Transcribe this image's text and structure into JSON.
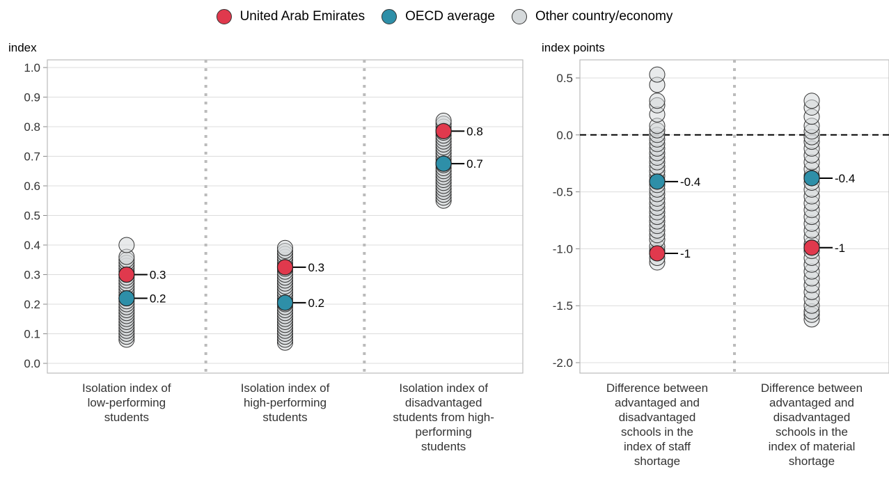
{
  "legend": [
    {
      "label": "United Arab Emirates",
      "color": "#e0394d"
    },
    {
      "label": "OECD average",
      "color": "#2e8fa8"
    },
    {
      "label": "Other country/economy",
      "color": "#d5d9db"
    }
  ],
  "colors": {
    "highlight": "#e0394d",
    "oecd": "#2e8fa8",
    "other": "#d5d9db",
    "other_edge": "#333333"
  },
  "chart_data": [
    {
      "type": "scatter",
      "unit_label": "index",
      "ylim": [
        0,
        1.0
      ],
      "yticks": [
        "0.0",
        "0.1",
        "0.2",
        "0.3",
        "0.4",
        "0.5",
        "0.6",
        "0.7",
        "0.8",
        "0.9",
        "1.0"
      ],
      "grid": true,
      "categories": [
        {
          "label": [
            "Isolation index of",
            "low-performing",
            "students"
          ],
          "others": [
            0.08,
            0.09,
            0.1,
            0.11,
            0.12,
            0.13,
            0.14,
            0.15,
            0.16,
            0.17,
            0.18,
            0.19,
            0.2,
            0.21,
            0.22,
            0.23,
            0.24,
            0.25,
            0.26,
            0.27,
            0.28,
            0.29,
            0.3,
            0.31,
            0.32,
            0.33,
            0.34,
            0.35,
            0.36,
            0.4
          ],
          "uae": {
            "value": 0.3,
            "label": "0.3"
          },
          "oecd": {
            "value": 0.22,
            "label": "0.2"
          }
        },
        {
          "label": [
            "Isolation index of",
            "high-performing",
            "students"
          ],
          "others": [
            0.07,
            0.08,
            0.09,
            0.1,
            0.11,
            0.12,
            0.13,
            0.14,
            0.15,
            0.16,
            0.17,
            0.18,
            0.19,
            0.2,
            0.21,
            0.22,
            0.23,
            0.24,
            0.25,
            0.26,
            0.27,
            0.28,
            0.29,
            0.3,
            0.31,
            0.32,
            0.33,
            0.34,
            0.35,
            0.36,
            0.37,
            0.38,
            0.39
          ],
          "uae": {
            "value": 0.325,
            "label": "0.3"
          },
          "oecd": {
            "value": 0.205,
            "label": "0.2"
          }
        },
        {
          "label": [
            "Isolation index of",
            "disadvantaged",
            "students from high-",
            "performing",
            "students"
          ],
          "others": [
            0.55,
            0.56,
            0.57,
            0.58,
            0.59,
            0.6,
            0.61,
            0.62,
            0.63,
            0.64,
            0.65,
            0.66,
            0.67,
            0.68,
            0.69,
            0.7,
            0.71,
            0.72,
            0.73,
            0.74,
            0.75,
            0.76,
            0.77,
            0.78,
            0.79,
            0.8,
            0.81,
            0.82
          ],
          "uae": {
            "value": 0.785,
            "label": "0.8"
          },
          "oecd": {
            "value": 0.675,
            "label": "0.7"
          }
        }
      ]
    },
    {
      "type": "scatter",
      "unit_label": "index points",
      "ylim": [
        -2.0,
        0.6
      ],
      "yticks": [
        "-2.0",
        "-1.5",
        "-1.0",
        "-0.5",
        "0.0",
        "0.5"
      ],
      "grid": true,
      "reference_line": 0.0,
      "categories": [
        {
          "label": [
            "Difference between",
            "advantaged and",
            "disadvantaged",
            "schools in the",
            "index of staff",
            "shortage"
          ],
          "others": [
            -1.12,
            -1.08,
            -1.02,
            -0.98,
            -0.92,
            -0.88,
            -0.84,
            -0.8,
            -0.76,
            -0.72,
            -0.68,
            -0.64,
            -0.6,
            -0.56,
            -0.52,
            -0.48,
            -0.44,
            -0.4,
            -0.36,
            -0.32,
            -0.28,
            -0.24,
            -0.2,
            -0.16,
            -0.12,
            -0.08,
            -0.04,
            0.0,
            0.04,
            0.08,
            0.18,
            0.26,
            0.3,
            0.44,
            0.53
          ],
          "uae": {
            "value": -1.04,
            "label": "-1"
          },
          "oecd": {
            "value": -0.41,
            "label": "-0.4"
          }
        },
        {
          "label": [
            "Difference between",
            "advantaged and",
            "disadvantaged",
            "schools in the",
            "index of material",
            "shortage"
          ],
          "others": [
            -1.62,
            -1.58,
            -1.55,
            -1.5,
            -1.44,
            -1.38,
            -1.32,
            -1.26,
            -1.2,
            -1.14,
            -1.08,
            -1.02,
            -0.96,
            -0.9,
            -0.84,
            -0.78,
            -0.72,
            -0.66,
            -0.6,
            -0.54,
            -0.48,
            -0.42,
            -0.36,
            -0.3,
            -0.24,
            -0.18,
            -0.12,
            -0.06,
            -0.02,
            0.03,
            0.08,
            0.16,
            0.24,
            0.3
          ],
          "uae": {
            "value": -0.99,
            "label": "-1"
          },
          "oecd": {
            "value": -0.38,
            "label": "-0.4"
          }
        }
      ]
    }
  ]
}
